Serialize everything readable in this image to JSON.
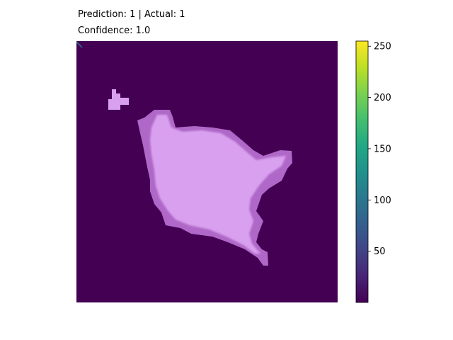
{
  "chart_data": {
    "type": "heatmap",
    "title_lines": [
      "Prediction: 1 | Actual: 1",
      "Confidence: 1.0"
    ],
    "grid": "off",
    "axes": "hidden",
    "colormap": "viridis",
    "background_color": "#440154",
    "overlay_color": "#d9a0ef",
    "overlay_edge_color": "#b068c8",
    "colorbar": {
      "range": [
        0,
        255
      ],
      "ticks": [
        50,
        100,
        150,
        200,
        250
      ],
      "tick_labels": [
        "50",
        "100",
        "150",
        "200",
        "250"
      ],
      "placement": "right"
    }
  }
}
